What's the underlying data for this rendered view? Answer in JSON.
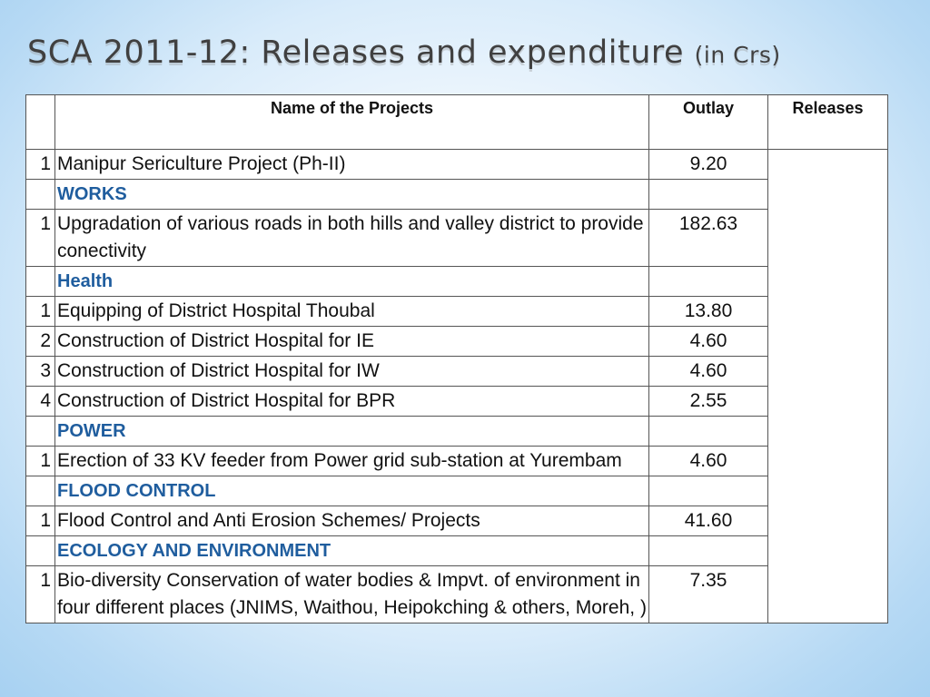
{
  "title": {
    "main": "SCA 2011-12: Releases and expenditure ",
    "suffix": "(in Crs)"
  },
  "table": {
    "headers": {
      "num": "",
      "name": "Name of the Projects",
      "outlay": "Outlay",
      "releases": "Releases"
    },
    "rows": [
      {
        "num": "1",
        "name": "Manipur Sericulture Project (Ph-II)",
        "outlay": "9.20"
      },
      {
        "section": "WORKS"
      },
      {
        "num": "1",
        "name": "Upgradation of various roads in both hills and valley district to provide conectivity",
        "outlay": "182.63"
      },
      {
        "section": "Health"
      },
      {
        "num": "1",
        "name": "Equipping of  District Hospital Thoubal",
        "outlay": "13.80"
      },
      {
        "num": "2",
        "name": "Construction of District Hospital for IE",
        "outlay": "4.60"
      },
      {
        "num": "3",
        "name": "Construction of District Hospital for IW",
        "outlay": "4.60"
      },
      {
        "num": "4",
        "name": "Construction of District Hospital for BPR",
        "outlay": "2.55"
      },
      {
        "section": "POWER"
      },
      {
        "num": "1",
        "name": "Erection of 33 KV feeder from Power grid sub-station at Yurembam",
        "outlay": "4.60"
      },
      {
        "section": "FLOOD CONTROL"
      },
      {
        "num": "1",
        "name": "Flood Control and Anti Erosion Schemes/ Projects",
        "outlay": "41.60"
      },
      {
        "section": "ECOLOGY AND ENVIRONMENT"
      },
      {
        "num": "1",
        "name": "Bio-diversity Conservation of water bodies & Impvt. of environment in four different places (JNIMS, Waithou, Heipokching & others, Moreh, )",
        "outlay": "7.35"
      }
    ],
    "releases_value": ""
  },
  "colors": {
    "section_text": "#1f5d9e",
    "title_text": "#404040",
    "background_edge": "#a7d1f1"
  }
}
